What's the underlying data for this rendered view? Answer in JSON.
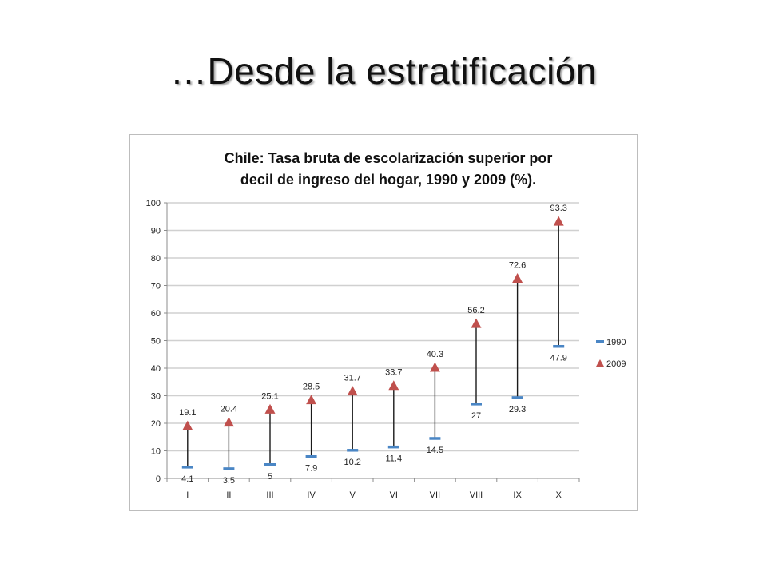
{
  "slide": {
    "title": "…Desde la estratificación"
  },
  "colors": {
    "series_1990": "#4a86c5",
    "series_2009": "#c0504d",
    "range_line": "#1a1a1a",
    "grid": "#d0d0d0",
    "axis": "#8c8c8c"
  },
  "chart_data": {
    "type": "scatter",
    "title_lines": [
      "Chile: Tasa bruta de escolarización superior por",
      "decil de ingreso del hogar, 1990 y 2009 (%)."
    ],
    "categories": [
      "I",
      "II",
      "III",
      "IV",
      "V",
      "VI",
      "VII",
      "VIII",
      "IX",
      "X"
    ],
    "series": [
      {
        "name": "1990",
        "marker": "dash",
        "values": [
          4.1,
          3.5,
          5,
          7.9,
          10.2,
          11.4,
          14.5,
          27,
          29.3,
          47.9
        ]
      },
      {
        "name": "2009",
        "marker": "triangle",
        "values": [
          19.1,
          20.4,
          25.1,
          28.5,
          31.7,
          33.7,
          40.3,
          56.2,
          72.6,
          93.3
        ]
      }
    ],
    "value_labels_1990": [
      "4.1",
      "3.5",
      "5",
      "7.9",
      "10.2",
      "11.4",
      "14.5",
      "27",
      "29.3",
      "47.9"
    ],
    "value_labels_2009": [
      "19.1",
      "20.4",
      "25.1",
      "28.5",
      "31.7",
      "33.7",
      "40.3",
      "56.2",
      "72.6",
      "93.3"
    ],
    "yticks": [
      "0",
      "10",
      "20",
      "30",
      "40",
      "50",
      "60",
      "70",
      "80",
      "90",
      "100"
    ],
    "ylim": [
      0,
      100
    ],
    "grid": true,
    "high_low_lines": true,
    "legend_position": "right"
  }
}
